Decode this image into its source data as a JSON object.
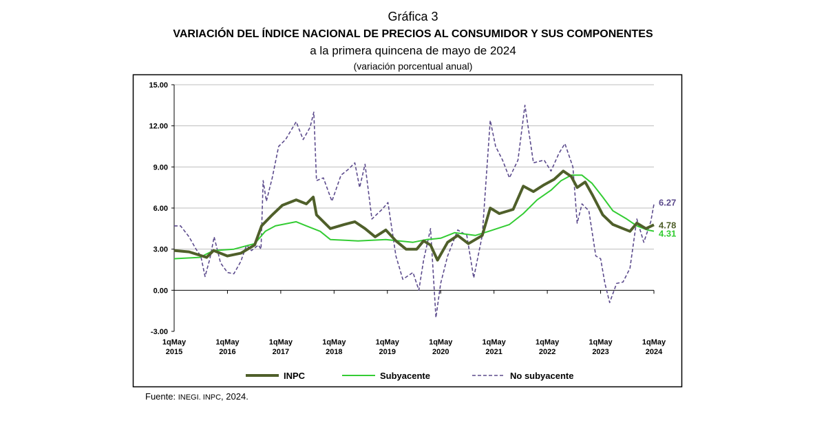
{
  "chart_data": {
    "type": "line",
    "figure_label": "Gráfica 3",
    "title": "VARIACIÓN DEL ÍNDICE NACIONAL DE PRECIOS AL CONSUMIDOR Y SUS COMPONENTES",
    "subtitle": "a la primera quincena de mayo de 2024",
    "ylabel": "(variación porcentual anual)",
    "ylim": [
      -3,
      15
    ],
    "yticks": [
      "15.00",
      "12.00",
      "9.00",
      "6.00",
      "3.00",
      "0.00",
      "-3.00"
    ],
    "xlim": [
      2015.37,
      2024.37
    ],
    "xticks": [
      {
        "line1": "1qMay",
        "line2": "2015"
      },
      {
        "line1": "1qMay",
        "line2": "2016"
      },
      {
        "line1": "1qMay",
        "line2": "2017"
      },
      {
        "line1": "1qMay",
        "line2": "2018"
      },
      {
        "line1": "1qMay",
        "line2": "2019"
      },
      {
        "line1": "1qMay",
        "line2": "2020"
      },
      {
        "line1": "1qMay",
        "line2": "2021"
      },
      {
        "line1": "1qMay",
        "line2": "2022"
      },
      {
        "line1": "1qMay",
        "line2": "2023"
      },
      {
        "line1": "1qMay",
        "line2": "2024"
      }
    ],
    "grid": true,
    "legend_position": "bottom",
    "series": [
      {
        "name": "INPC",
        "color": "#4f5f2a",
        "style": "solid-thick",
        "end_label": "4.78",
        "x": [
          2015.37,
          2015.65,
          2015.98,
          2016.11,
          2016.37,
          2016.62,
          2016.88,
          2017.01,
          2017.21,
          2017.4,
          2017.66,
          2017.85,
          2017.98,
          2018.04,
          2018.3,
          2018.56,
          2018.76,
          2018.95,
          2019.14,
          2019.34,
          2019.53,
          2019.72,
          2019.92,
          2020.05,
          2020.18,
          2020.31,
          2020.5,
          2020.69,
          2020.89,
          2021.15,
          2021.3,
          2021.47,
          2021.73,
          2021.92,
          2022.11,
          2022.31,
          2022.5,
          2022.67,
          2022.82,
          2022.93,
          2023.08,
          2023.21,
          2023.41,
          2023.6,
          2023.79,
          2023.92,
          2024.05,
          2024.22,
          2024.37
        ],
        "y": [
          2.9,
          2.8,
          2.4,
          2.9,
          2.5,
          2.7,
          3.3,
          4.7,
          5.5,
          6.2,
          6.6,
          6.3,
          6.8,
          5.5,
          4.5,
          4.8,
          5.0,
          4.5,
          3.9,
          4.4,
          3.6,
          3.0,
          3.0,
          3.6,
          3.3,
          2.2,
          3.5,
          4.0,
          3.4,
          4.0,
          6.0,
          5.6,
          5.9,
          7.6,
          7.2,
          7.7,
          8.1,
          8.7,
          8.3,
          7.5,
          7.9,
          7.0,
          5.5,
          4.8,
          4.5,
          4.3,
          4.9,
          4.5,
          4.78
        ]
      },
      {
        "name": "Subyacente",
        "color": "#33cc33",
        "style": "solid",
        "end_label": "4.31",
        "x": [
          2015.37,
          2015.85,
          2016.11,
          2016.49,
          2016.88,
          2017.08,
          2017.27,
          2017.66,
          2017.85,
          2018.11,
          2018.3,
          2018.82,
          2019.34,
          2019.85,
          2020.11,
          2020.37,
          2020.63,
          2021.02,
          2021.27,
          2021.66,
          2021.92,
          2022.18,
          2022.44,
          2022.63,
          2022.82,
          2023.02,
          2023.21,
          2023.41,
          2023.6,
          2023.86,
          2024.05,
          2024.25,
          2024.37
        ],
        "y": [
          2.3,
          2.4,
          2.9,
          3.0,
          3.4,
          4.3,
          4.7,
          5.0,
          4.7,
          4.3,
          3.7,
          3.6,
          3.7,
          3.5,
          3.7,
          3.8,
          4.2,
          4.0,
          4.3,
          4.8,
          5.6,
          6.6,
          7.3,
          8.0,
          8.4,
          8.4,
          7.8,
          6.8,
          5.8,
          5.2,
          4.7,
          4.4,
          4.31
        ]
      },
      {
        "name": "No subyacente",
        "color": "#5b4a8c",
        "style": "dashed",
        "end_label": "6.27",
        "x": [
          2015.37,
          2015.49,
          2015.65,
          2015.78,
          2015.87,
          2015.95,
          2016.04,
          2016.12,
          2016.24,
          2016.37,
          2016.49,
          2016.62,
          2016.73,
          2016.82,
          2016.95,
          2017.0,
          2017.04,
          2017.1,
          2017.21,
          2017.33,
          2017.46,
          2017.66,
          2017.79,
          2017.92,
          2017.99,
          2018.04,
          2018.17,
          2018.33,
          2018.5,
          2018.63,
          2018.76,
          2018.85,
          2018.95,
          2019.08,
          2019.27,
          2019.38,
          2019.53,
          2019.66,
          2019.85,
          2019.96,
          2020.05,
          2020.18,
          2020.28,
          2020.37,
          2020.5,
          2020.69,
          2020.86,
          2020.99,
          2021.15,
          2021.3,
          2021.4,
          2021.53,
          2021.66,
          2021.82,
          2021.95,
          2022.11,
          2022.31,
          2022.44,
          2022.59,
          2022.7,
          2022.85,
          2022.93,
          2023.02,
          2023.15,
          2023.28,
          2023.37,
          2023.45,
          2023.54,
          2023.67,
          2023.79,
          2023.92,
          2024.05,
          2024.18,
          2024.31,
          2024.37
        ],
        "y": [
          4.7,
          4.7,
          3.9,
          3.0,
          2.5,
          1.0,
          2.3,
          3.9,
          2.0,
          1.3,
          1.2,
          2.1,
          3.3,
          2.9,
          3.3,
          3.0,
          8.0,
          6.5,
          8.2,
          10.5,
          11.0,
          12.3,
          11.0,
          11.9,
          13.0,
          8.0,
          8.2,
          6.5,
          8.4,
          8.8,
          9.3,
          7.5,
          9.2,
          5.2,
          5.9,
          6.4,
          2.5,
          0.8,
          1.3,
          0.0,
          2.2,
          4.5,
          -2.0,
          0.5,
          2.5,
          4.4,
          4.0,
          0.9,
          4.0,
          12.4,
          10.5,
          9.5,
          8.2,
          9.5,
          13.5,
          9.3,
          9.5,
          8.7,
          10.0,
          10.7,
          9.0,
          4.9,
          6.3,
          5.8,
          2.5,
          2.3,
          0.5,
          -0.9,
          0.5,
          0.6,
          1.6,
          5.2,
          3.5,
          5.0,
          6.27
        ]
      }
    ],
    "source_prefix": "Fuente: ",
    "source_org": "INEGI. INPC",
    "source_suffix": ", 2024."
  }
}
